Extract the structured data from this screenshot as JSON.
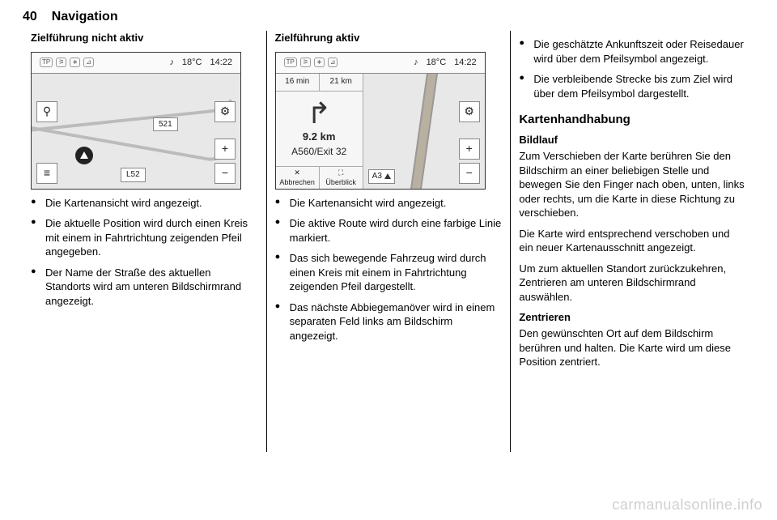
{
  "header": {
    "page_number": "40",
    "section": "Navigation"
  },
  "col1": {
    "heading": "Zielführung nicht aktiv",
    "screenshot": {
      "top_temp": "18°C",
      "top_time": "14:22",
      "tp_label": "TP",
      "road_521": "521",
      "road_L52": "L52",
      "search_icon": "⚲",
      "gear_icon": "⚙",
      "menu_icon": "≡",
      "plus": "+",
      "minus": "−"
    },
    "bullets": [
      "Die Kartenansicht wird ange­zeigt.",
      "Die aktuelle Position wird durch einen Kreis mit einem in Fahrt­richtung zeigenden Pfeil angege­ben.",
      "Der Name der Straße des aktu­ellen Standorts wird am unteren Bildschirmrand angezeigt."
    ]
  },
  "col2": {
    "heading": "Zielführung aktiv",
    "screenshot": {
      "top_temp": "18°C",
      "top_time": "14:22",
      "eta": "16 min",
      "remaining": "21 km",
      "tp_label": "TP",
      "turn_dist": "9.2 km",
      "turn_exit": "A560/Exit 32",
      "cancel": "Abbrechen",
      "overview": "Überblick",
      "a3": "A3",
      "gear_icon": "⚙",
      "plus": "+",
      "minus": "−",
      "cancel_icon": "✕",
      "overview_icon": "⛶"
    },
    "bullets": [
      "Die Kartenansicht wird ange­zeigt.",
      "Die aktive Route wird durch eine farbige Linie markiert.",
      "Das sich bewegende Fahrzeug wird durch einen Kreis mit einem in Fahrtrichtung zeigenden Pfeil dargestellt.",
      "Das nächste Abbiegemanöver wird in einem separaten Feld links am Bildschirm angezeigt."
    ]
  },
  "col3": {
    "top_bullets": [
      "Die geschätzte Ankunftszeit oder Reisedauer wird über dem Pfeil­symbol angezeigt.",
      "Die verbleibende Strecke bis zum Ziel wird über dem Pfeilsym­bol dargestellt."
    ],
    "section_head": "Kartenhandhabung",
    "sub1_head": "Bildlauf",
    "sub1_paras": [
      "Zum Verschieben der Karte berühren Sie den Bildschirm an einer beliebi­gen Stelle und bewegen Sie den Finger nach oben, unten, links oder rechts, um die Karte in diese Richtung zu verschieben.",
      "Die Karte wird entsprechend verscho­ben und ein neuer Kartenausschnitt angezeigt.",
      "Um zum aktuellen Standort zurück­zukehren, Zentrieren am unteren Bildschirmrand auswählen."
    ],
    "sub2_head": "Zentrieren",
    "sub2_para": "Den gewünschten Ort auf dem Bild­schirm berühren und halten. Die Karte wird um diese Position zentriert."
  },
  "watermark": "carmanualsonline.info"
}
